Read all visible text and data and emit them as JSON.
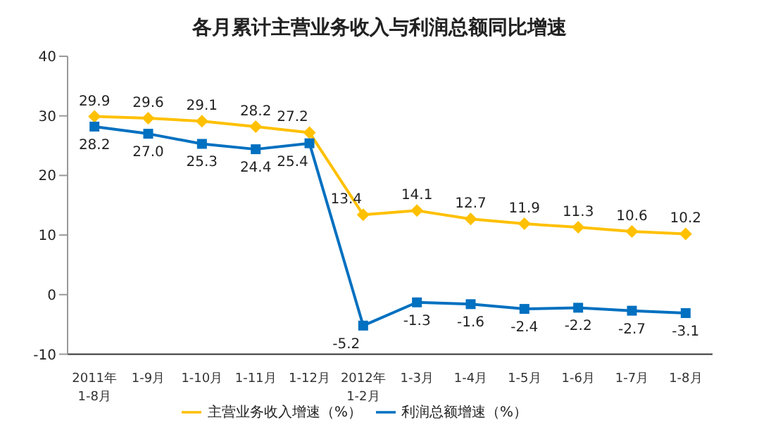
{
  "chart_data": {
    "type": "line",
    "title": "各月累计主营业务收入与利润总额同比增速",
    "categories": [
      "2011年\n1-8月",
      "1-9月",
      "1-10月",
      "1-11月",
      "1-12月",
      "2012年\n1-2月",
      "1-3月",
      "1-4月",
      "1-5月",
      "1-6月",
      "1-7月",
      "1-8月"
    ],
    "series": [
      {
        "name": "主营业务收入增速（%）",
        "color": "#ffc000",
        "marker": "diamond",
        "values": [
          29.9,
          29.6,
          29.1,
          28.2,
          27.2,
          13.4,
          14.1,
          12.7,
          11.9,
          11.3,
          10.6,
          10.2
        ],
        "value_labels": [
          "29.9",
          "29.6",
          "29.1",
          "28.2",
          "27.2",
          "13.4",
          "14.1",
          "12.7",
          "11.9",
          "11.3",
          "10.6",
          "10.2"
        ]
      },
      {
        "name": "利润总额增速（%）",
        "color": "#0070c0",
        "marker": "square",
        "values": [
          28.2,
          27.0,
          25.3,
          24.4,
          25.4,
          -5.2,
          -1.3,
          -1.6,
          -2.4,
          -2.2,
          -2.7,
          -3.1
        ],
        "value_labels": [
          "28.2",
          "27.0",
          "25.3",
          "24.4",
          "25.4",
          "-5.2",
          "-1.3",
          "-1.6",
          "-2.4",
          "-2.2",
          "-2.7",
          "-3.1"
        ]
      }
    ],
    "ylim": [
      -10,
      40
    ],
    "yticks": [
      -10,
      0,
      10,
      20,
      30,
      40
    ],
    "legend": "bottom",
    "line_style": "solid"
  }
}
